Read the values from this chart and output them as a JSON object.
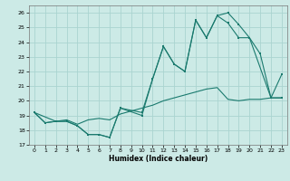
{
  "xlabel": "Humidex (Indice chaleur)",
  "xlim": [
    -0.5,
    23.5
  ],
  "ylim": [
    17,
    26.5
  ],
  "yticks": [
    17,
    18,
    19,
    20,
    21,
    22,
    23,
    24,
    25,
    26
  ],
  "xticks": [
    0,
    1,
    2,
    3,
    4,
    5,
    6,
    7,
    8,
    9,
    10,
    11,
    12,
    13,
    14,
    15,
    16,
    17,
    18,
    19,
    20,
    21,
    22,
    23
  ],
  "bg_color": "#cceae6",
  "grid_color": "#aad4d0",
  "line_color": "#1a7a6e",
  "line1_x": [
    0,
    1,
    2,
    3,
    4,
    5,
    6,
    7,
    8,
    10,
    11,
    12,
    13,
    14,
    15,
    16,
    17,
    18,
    19,
    20,
    21,
    22,
    23
  ],
  "line1_y": [
    19.2,
    18.5,
    18.6,
    18.6,
    18.3,
    17.7,
    17.7,
    17.5,
    19.5,
    19.0,
    21.5,
    23.7,
    22.5,
    22.0,
    25.5,
    24.3,
    25.8,
    26.0,
    25.2,
    24.3,
    23.2,
    20.2,
    21.8
  ],
  "line2_x": [
    0,
    2,
    3,
    4,
    5,
    6,
    7,
    8,
    10,
    11,
    12,
    13,
    14,
    15,
    16,
    17,
    18,
    19,
    20,
    22,
    23
  ],
  "line2_y": [
    19.2,
    18.6,
    18.6,
    18.3,
    17.7,
    17.7,
    17.5,
    19.5,
    19.2,
    21.5,
    23.7,
    22.5,
    22.0,
    25.5,
    24.3,
    25.8,
    25.3,
    24.3,
    24.3,
    20.2,
    20.2
  ],
  "line3_x": [
    0,
    1,
    2,
    3,
    4,
    5,
    6,
    7,
    8,
    9,
    10,
    11,
    12,
    13,
    14,
    15,
    16,
    17,
    18,
    19,
    20,
    21,
    22,
    23
  ],
  "line3_y": [
    19.2,
    18.5,
    18.6,
    18.7,
    18.4,
    18.7,
    18.8,
    18.7,
    19.1,
    19.3,
    19.5,
    19.7,
    20.0,
    20.2,
    20.4,
    20.6,
    20.8,
    20.9,
    20.1,
    20.0,
    20.1,
    20.1,
    20.2,
    20.2
  ]
}
